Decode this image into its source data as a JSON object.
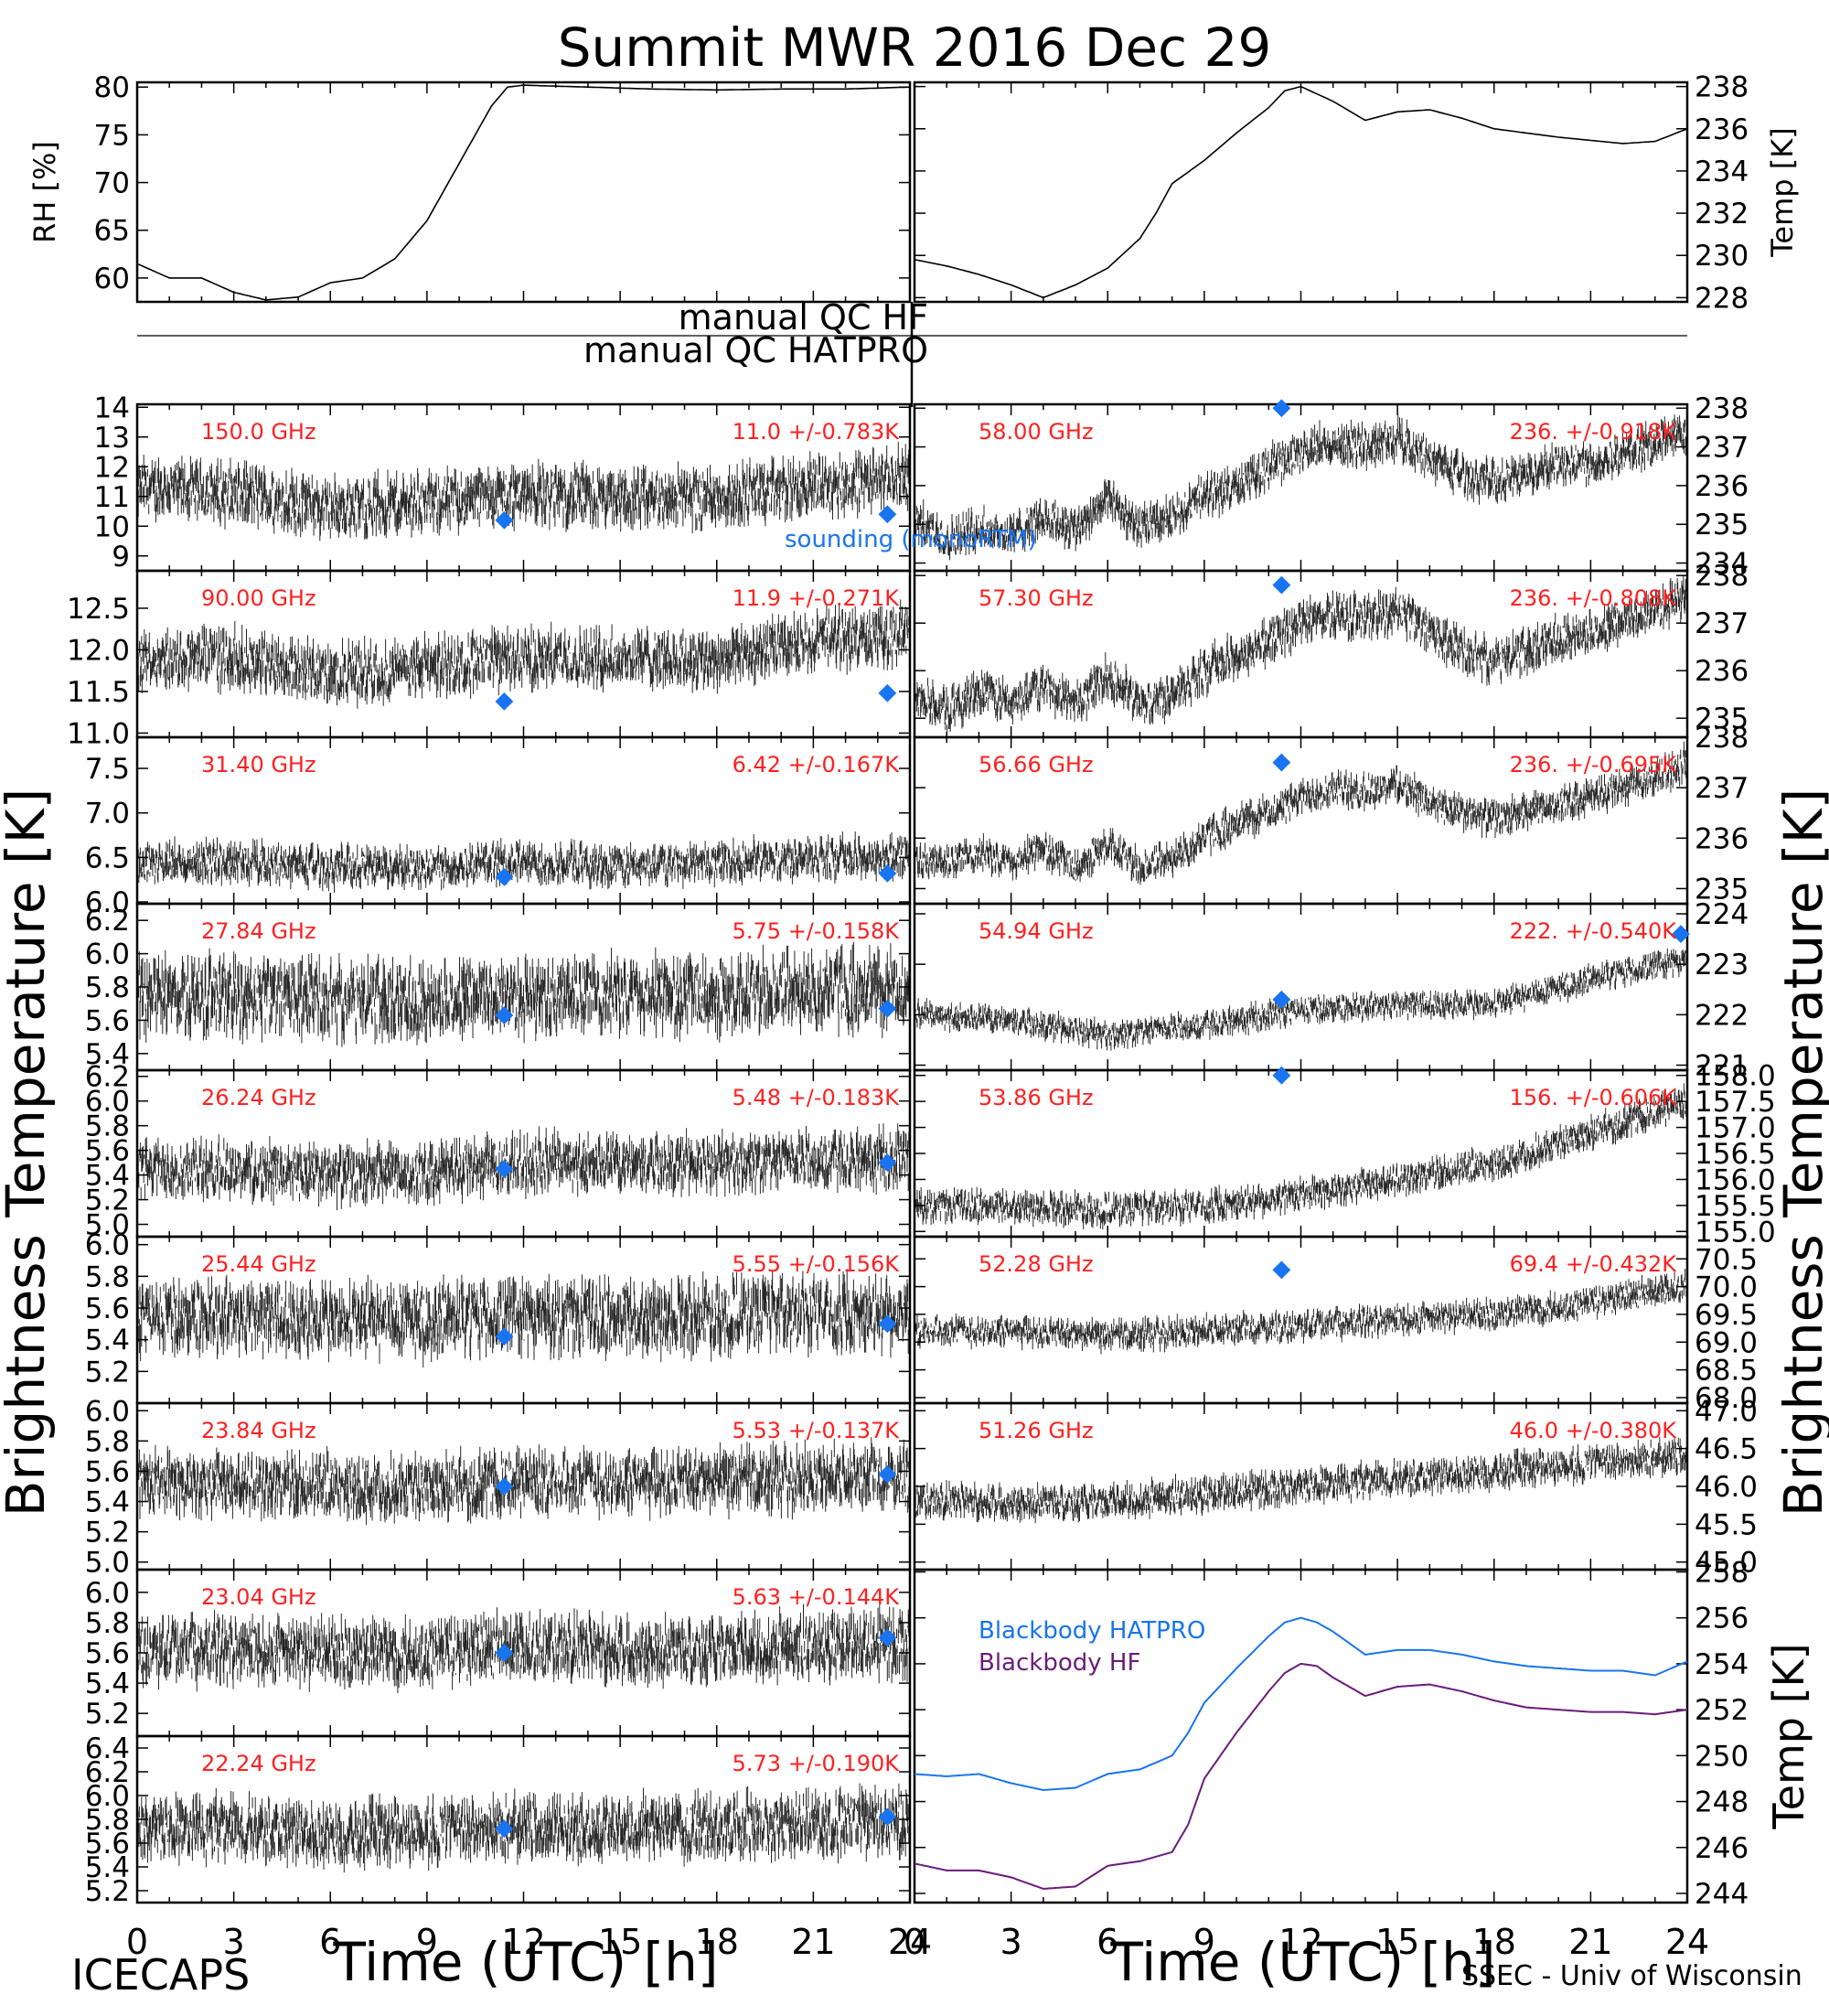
{
  "title": "Summit MWR 2016 Dec 29",
  "footer": {
    "left": "ICECAPS",
    "right": "SSEC - Univ of Wisconsin"
  },
  "y_label_left": "Brightness Temperature [K]",
  "y_label_right": "Brightness Temperature [K]",
  "x_label": "Time (UTC) [h]",
  "x_ticks": [
    "0",
    "3",
    "6",
    "9",
    "12",
    "15",
    "18",
    "21",
    "24"
  ],
  "qc": {
    "hf": "manual QC HF",
    "hatpro": "manual QC HATPRO"
  },
  "legend_sounding": "sounding (monoRTM)",
  "colors": {
    "text_red": "#ff2020",
    "sounding": "#1874f0",
    "bb_hatpro": "#1874f0",
    "bb_hf": "#6a1b7a"
  },
  "chart_data": [
    {
      "type": "line",
      "name": "RH",
      "ylabel": "RH [%]",
      "ylim": [
        57.5,
        80.5
      ],
      "yticks": [
        60,
        65,
        70,
        75,
        80
      ],
      "x": [
        0,
        1,
        2,
        3,
        4,
        5,
        6,
        7,
        8,
        9,
        9.5,
        10,
        10.5,
        11,
        11.5,
        12,
        14,
        16,
        18,
        20,
        22,
        24
      ],
      "values": [
        61.5,
        60,
        60,
        58.5,
        57.7,
        58,
        59.5,
        60,
        62,
        66,
        69,
        72,
        75,
        78,
        80,
        80.2,
        80,
        79.8,
        79.7,
        79.8,
        79.8,
        80.0
      ]
    },
    {
      "type": "line",
      "name": "Temp",
      "ylabel": "Temp [K]",
      "ylim": [
        227.8,
        238.2
      ],
      "yticks": [
        228,
        230,
        232,
        234,
        236,
        238
      ],
      "x": [
        0,
        1,
        2,
        3,
        4,
        5,
        6,
        7,
        7.5,
        8,
        9,
        10,
        11,
        11.5,
        12,
        13,
        14,
        15,
        16,
        17,
        18,
        20,
        22,
        23,
        24
      ],
      "values": [
        229.8,
        229.5,
        229.1,
        228.6,
        228,
        228.6,
        229.4,
        230.8,
        232,
        233.4,
        234.5,
        235.8,
        237,
        237.8,
        238,
        237.3,
        236.4,
        236.8,
        236.9,
        236.5,
        236,
        235.6,
        235.3,
        235.4,
        236
      ]
    },
    {
      "type": "scatter",
      "freq": "150.0 GHz",
      "stat": "11.0 +/-0.783K",
      "ylim": [
        8.5,
        14.1
      ],
      "yticks": [
        "14",
        "13",
        "12",
        "11",
        "10",
        "9"
      ],
      "yvals": [
        14,
        13,
        12,
        11,
        10,
        9
      ],
      "trend_x": [
        0,
        3,
        6,
        9,
        12,
        15,
        18,
        21,
        24
      ],
      "trend": [
        11.3,
        11.1,
        10.6,
        10.8,
        11.1,
        10.9,
        11.0,
        11.3,
        11.6
      ],
      "amplitude": 1.3,
      "sounding_x": [
        11.4,
        23.3
      ],
      "sounding_y": [
        10.2,
        10.4
      ]
    },
    {
      "type": "scatter",
      "freq": "90.00 GHz",
      "stat": "11.9 +/-0.271K",
      "ylim": [
        10.95,
        12.95
      ],
      "yticks": [
        "12.5",
        "12.0",
        "11.5",
        "11.0"
      ],
      "yvals": [
        12.5,
        12.0,
        11.5,
        11.0
      ],
      "trend_x": [
        0,
        3,
        6,
        9,
        12,
        15,
        18,
        21,
        24
      ],
      "trend": [
        11.9,
        11.9,
        11.7,
        11.8,
        11.9,
        11.9,
        11.9,
        12.1,
        12.2
      ],
      "amplitude": 0.45,
      "sounding_x": [
        11.4,
        23.3
      ],
      "sounding_y": [
        11.38,
        11.48
      ]
    },
    {
      "type": "scatter",
      "freq": "31.40 GHz",
      "stat": "6.42 +/-0.167K",
      "ylim": [
        5.98,
        7.85
      ],
      "yticks": [
        "7.5",
        "7.0",
        "6.5",
        "6.0"
      ],
      "yvals": [
        7.5,
        7.0,
        6.5,
        6.0
      ],
      "trend_x": [
        0,
        3,
        6,
        9,
        12,
        15,
        18,
        21,
        24
      ],
      "trend": [
        6.45,
        6.45,
        6.4,
        6.4,
        6.45,
        6.4,
        6.45,
        6.5,
        6.5
      ],
      "amplitude": 0.3,
      "sounding_x": [
        11.4,
        23.3
      ],
      "sounding_y": [
        6.28,
        6.32
      ]
    },
    {
      "type": "scatter",
      "freq": "27.84 GHz",
      "stat": "5.75 +/-0.158K",
      "ylim": [
        5.3,
        6.3
      ],
      "yticks": [
        "6.2",
        "6.0",
        "5.8",
        "5.6",
        "5.4"
      ],
      "yvals": [
        6.2,
        6.0,
        5.8,
        5.6,
        5.4
      ],
      "trend_x": [
        0,
        3,
        6,
        9,
        12,
        15,
        18,
        21,
        24
      ],
      "trend": [
        5.75,
        5.75,
        5.72,
        5.72,
        5.75,
        5.75,
        5.75,
        5.78,
        5.78
      ],
      "amplitude": 0.3,
      "sounding_x": [
        11.4,
        23.3
      ],
      "sounding_y": [
        5.63,
        5.67
      ]
    },
    {
      "type": "scatter",
      "freq": "26.24 GHz",
      "stat": "5.48 +/-0.183K",
      "ylim": [
        4.9,
        6.25
      ],
      "yticks": [
        "6.2",
        "6.0",
        "5.8",
        "5.6",
        "5.4",
        "5.2",
        "5.0"
      ],
      "yvals": [
        6.2,
        6.0,
        5.8,
        5.6,
        5.4,
        5.2,
        5.0
      ],
      "trend_x": [
        0,
        3,
        6,
        9,
        12,
        15,
        18,
        21,
        24
      ],
      "trend": [
        5.45,
        5.45,
        5.4,
        5.42,
        5.5,
        5.5,
        5.5,
        5.52,
        5.55
      ],
      "amplitude": 0.3,
      "sounding_x": [
        11.4,
        23.3
      ],
      "sounding_y": [
        5.45,
        5.5
      ]
    },
    {
      "type": "scatter",
      "freq": "25.44 GHz",
      "stat": "5.55 +/-0.156K",
      "ylim": [
        5.0,
        6.05
      ],
      "yticks": [
        "6.0",
        "5.8",
        "5.6",
        "5.4",
        "5.2"
      ],
      "yvals": [
        6.0,
        5.8,
        5.6,
        5.4,
        5.2
      ],
      "trend_x": [
        0,
        3,
        6,
        9,
        12,
        15,
        18,
        21,
        24
      ],
      "trend": [
        5.55,
        5.55,
        5.52,
        5.52,
        5.55,
        5.55,
        5.55,
        5.57,
        5.58
      ],
      "amplitude": 0.3,
      "sounding_x": [
        11.4,
        23.3
      ],
      "sounding_y": [
        5.42,
        5.5
      ]
    },
    {
      "type": "scatter",
      "freq": "23.84 GHz",
      "stat": "5.53 +/-0.137K",
      "ylim": [
        4.95,
        6.05
      ],
      "yticks": [
        "6.0",
        "5.8",
        "5.6",
        "5.4",
        "5.2",
        "5.0"
      ],
      "yvals": [
        6.0,
        5.8,
        5.6,
        5.4,
        5.2,
        5.0
      ],
      "trend_x": [
        0,
        3,
        6,
        9,
        12,
        15,
        18,
        21,
        24
      ],
      "trend": [
        5.52,
        5.52,
        5.5,
        5.5,
        5.53,
        5.53,
        5.53,
        5.55,
        5.57
      ],
      "amplitude": 0.27,
      "sounding_x": [
        11.4,
        23.3
      ],
      "sounding_y": [
        5.5,
        5.58
      ]
    },
    {
      "type": "scatter",
      "freq": "23.04 GHz",
      "stat": "5.63 +/-0.144K",
      "ylim": [
        5.05,
        6.15
      ],
      "yticks": [
        "6.0",
        "5.8",
        "5.6",
        "5.4",
        "5.2"
      ],
      "yvals": [
        6.0,
        5.8,
        5.6,
        5.4,
        5.2
      ],
      "trend_x": [
        0,
        3,
        6,
        9,
        12,
        15,
        18,
        21,
        24
      ],
      "trend": [
        5.62,
        5.62,
        5.6,
        5.6,
        5.63,
        5.63,
        5.63,
        5.65,
        5.66
      ],
      "amplitude": 0.28,
      "sounding_x": [
        11.4,
        23.3
      ],
      "sounding_y": [
        5.6,
        5.7
      ]
    },
    {
      "type": "scatter",
      "freq": "22.24 GHz",
      "stat": "5.73 +/-0.190K",
      "ylim": [
        5.1,
        6.5
      ],
      "yticks": [
        "6.4",
        "6.2",
        "6.0",
        "5.8",
        "5.6",
        "5.4",
        "5.2"
      ],
      "yvals": [
        6.4,
        6.2,
        6.0,
        5.8,
        5.6,
        5.4,
        5.2
      ],
      "trend_x": [
        0,
        3,
        6,
        9,
        12,
        15,
        18,
        21,
        24
      ],
      "trend": [
        5.72,
        5.72,
        5.68,
        5.7,
        5.73,
        5.73,
        5.73,
        5.76,
        5.78
      ],
      "amplitude": 0.35,
      "sounding_x": [
        11.4,
        23.3
      ],
      "sounding_y": [
        5.72,
        5.82
      ]
    },
    {
      "type": "scatter",
      "freq": "58.00 GHz",
      "stat": "236. +/-0.918K",
      "ylim": [
        233.8,
        238.1
      ],
      "yticks": [
        "238",
        "237",
        "236",
        "235",
        "234"
      ],
      "yvals": [
        238,
        237,
        236,
        235,
        234
      ],
      "trend_x": [
        0,
        1,
        2,
        3,
        4,
        5,
        6,
        7,
        8,
        9,
        10,
        11,
        12,
        13,
        14,
        15,
        16,
        17,
        18,
        19,
        20,
        21,
        22,
        23,
        24
      ],
      "trend": [
        235.1,
        234.6,
        234.9,
        234.7,
        235.2,
        234.9,
        235.7,
        234.9,
        235.2,
        235.7,
        236.0,
        236.5,
        236.9,
        237.1,
        237.0,
        237.2,
        236.7,
        236.3,
        236.1,
        236.3,
        236.6,
        236.6,
        236.8,
        237.1,
        237.4
      ],
      "amplitude": 0.7,
      "sounding_x": [
        11.4
      ],
      "sounding_y": [
        238.0
      ]
    },
    {
      "type": "scatter",
      "freq": "57.30 GHz",
      "stat": "236. +/-0.808K",
      "ylim": [
        234.6,
        238.1
      ],
      "yticks": [
        "238",
        "237",
        "236",
        "235"
      ],
      "yvals": [
        238,
        237,
        236,
        235
      ],
      "trend_x": [
        0,
        1,
        2,
        3,
        4,
        5,
        6,
        7,
        8,
        9,
        10,
        11,
        12,
        13,
        14,
        15,
        16,
        17,
        18,
        19,
        20,
        21,
        22,
        23,
        24
      ],
      "trend": [
        235.6,
        235.1,
        235.6,
        235.3,
        235.7,
        235.3,
        235.9,
        235.3,
        235.5,
        236.0,
        236.3,
        236.6,
        237.0,
        237.2,
        237.1,
        237.3,
        236.8,
        236.4,
        236.2,
        236.4,
        236.7,
        236.8,
        237.0,
        237.3,
        237.6
      ],
      "amplitude": 0.6,
      "sounding_x": [
        11.4
      ],
      "sounding_y": [
        237.8
      ]
    },
    {
      "type": "scatter",
      "freq": "56.66 GHz",
      "stat": "236. +/-0.695K",
      "ylim": [
        234.7,
        238.0
      ],
      "yticks": [
        "238",
        "237",
        "236",
        "235"
      ],
      "yvals": [
        238,
        237,
        236,
        235
      ],
      "trend_x": [
        0,
        1,
        2,
        3,
        4,
        5,
        6,
        7,
        8,
        9,
        10,
        11,
        12,
        13,
        14,
        15,
        16,
        17,
        18,
        19,
        20,
        21,
        22,
        23,
        24
      ],
      "trend": [
        235.6,
        235.5,
        235.7,
        235.5,
        235.8,
        235.4,
        235.9,
        235.4,
        235.6,
        236.0,
        236.3,
        236.5,
        236.8,
        237.0,
        236.9,
        237.1,
        236.7,
        236.5,
        236.4,
        236.5,
        236.7,
        236.8,
        237.0,
        237.2,
        237.5
      ],
      "amplitude": 0.45,
      "sounding_x": [
        11.4
      ],
      "sounding_y": [
        237.5
      ]
    },
    {
      "type": "scatter",
      "freq": "54.94 GHz",
      "stat": "222. +/-0.540K",
      "ylim": [
        220.9,
        224.2
      ],
      "yticks": [
        "224",
        "223",
        "222",
        "221"
      ],
      "yvals": [
        224,
        223,
        222,
        221
      ],
      "trend_x": [
        0,
        3,
        6,
        9,
        12,
        15,
        18,
        21,
        24
      ],
      "trend": [
        222.0,
        221.9,
        221.6,
        221.8,
        222.1,
        222.2,
        222.2,
        222.7,
        223.1
      ],
      "amplitude": 0.35,
      "sounding_x": [
        11.4,
        23.8
      ],
      "sounding_y": [
        222.3,
        223.6
      ]
    },
    {
      "type": "scatter",
      "freq": "53.86 GHz",
      "stat": "156. +/-0.606K",
      "ylim": [
        154.9,
        158.1
      ],
      "yticks": [
        "158.0",
        "157.5",
        "157.0",
        "156.5",
        "156.0",
        "155.5",
        "155.0"
      ],
      "yvals": [
        158.0,
        157.5,
        157.0,
        156.5,
        156.0,
        155.5,
        155.0
      ],
      "trend_x": [
        0,
        3,
        6,
        9,
        12,
        15,
        18,
        21,
        24
      ],
      "trend": [
        155.5,
        155.5,
        155.4,
        155.5,
        155.7,
        156.0,
        156.3,
        156.9,
        157.5
      ],
      "amplitude": 0.4,
      "sounding_x": [
        11.4
      ],
      "sounding_y": [
        158.0
      ]
    },
    {
      "type": "scatter",
      "freq": "52.28 GHz",
      "stat": "69.4 +/-0.432K",
      "ylim": [
        67.9,
        70.9
      ],
      "yticks": [
        "70.5",
        "70.0",
        "69.5",
        "69.0",
        "68.5",
        "68.0"
      ],
      "yvals": [
        70.5,
        70.0,
        69.5,
        69.0,
        68.5,
        68.0
      ],
      "trend_x": [
        0,
        3,
        6,
        9,
        12,
        15,
        18,
        21,
        24
      ],
      "trend": [
        69.2,
        69.2,
        69.1,
        69.2,
        69.3,
        69.4,
        69.5,
        69.7,
        70.0
      ],
      "amplitude": 0.35,
      "sounding_x": [
        11.4
      ],
      "sounding_y": [
        70.3
      ]
    },
    {
      "type": "scatter",
      "freq": "51.26 GHz",
      "stat": "46.0 +/-0.380K",
      "ylim": [
        44.9,
        47.1
      ],
      "yticks": [
        "47.0",
        "46.5",
        "46.0",
        "45.5",
        "45.0"
      ],
      "yvals": [
        47.0,
        46.5,
        46.0,
        45.5,
        45.0
      ],
      "trend_x": [
        0,
        3,
        6,
        9,
        12,
        15,
        18,
        21,
        24
      ],
      "trend": [
        45.8,
        45.8,
        45.8,
        45.9,
        46.0,
        46.1,
        46.2,
        46.3,
        46.4
      ],
      "amplitude": 0.3,
      "sounding_x": [],
      "sounding_y": []
    },
    {
      "type": "line",
      "name": "Blackbody",
      "ylabel": "Temp [K]",
      "ylim": [
        243.6,
        258.1
      ],
      "yticks": [
        244,
        246,
        248,
        250,
        252,
        254,
        256,
        258
      ],
      "series": [
        {
          "name": "Blackbody HATPRO",
          "x": [
            0,
            1,
            2,
            3,
            4,
            5,
            6,
            7,
            8,
            8.5,
            9,
            10,
            11,
            11.5,
            12,
            12.5,
            13,
            14,
            15,
            16,
            17,
            18,
            19,
            20,
            21,
            22,
            23,
            24
          ],
          "values": [
            249.2,
            249.1,
            249.2,
            248.8,
            248.5,
            248.6,
            249.2,
            249.4,
            250.0,
            251.0,
            252.3,
            253.8,
            255.2,
            255.8,
            256.0,
            255.8,
            255.4,
            254.4,
            254.6,
            254.6,
            254.4,
            254.1,
            253.9,
            253.8,
            253.7,
            253.7,
            253.5,
            254.1
          ]
        },
        {
          "name": "Blackbody HF",
          "x": [
            0,
            1,
            2,
            3,
            4,
            5,
            6,
            7,
            8,
            8.5,
            9,
            10,
            11,
            11.5,
            12,
            12.5,
            13,
            14,
            15,
            16,
            17,
            18,
            19,
            20,
            21,
            22,
            23,
            24
          ],
          "values": [
            245.3,
            245.0,
            245.0,
            244.7,
            244.2,
            244.3,
            245.2,
            245.4,
            245.8,
            247.0,
            249.0,
            251.0,
            252.8,
            253.6,
            254.0,
            253.9,
            253.4,
            252.6,
            253.0,
            253.1,
            252.8,
            252.4,
            252.1,
            252.0,
            251.9,
            251.9,
            251.8,
            252.0
          ]
        }
      ]
    }
  ]
}
